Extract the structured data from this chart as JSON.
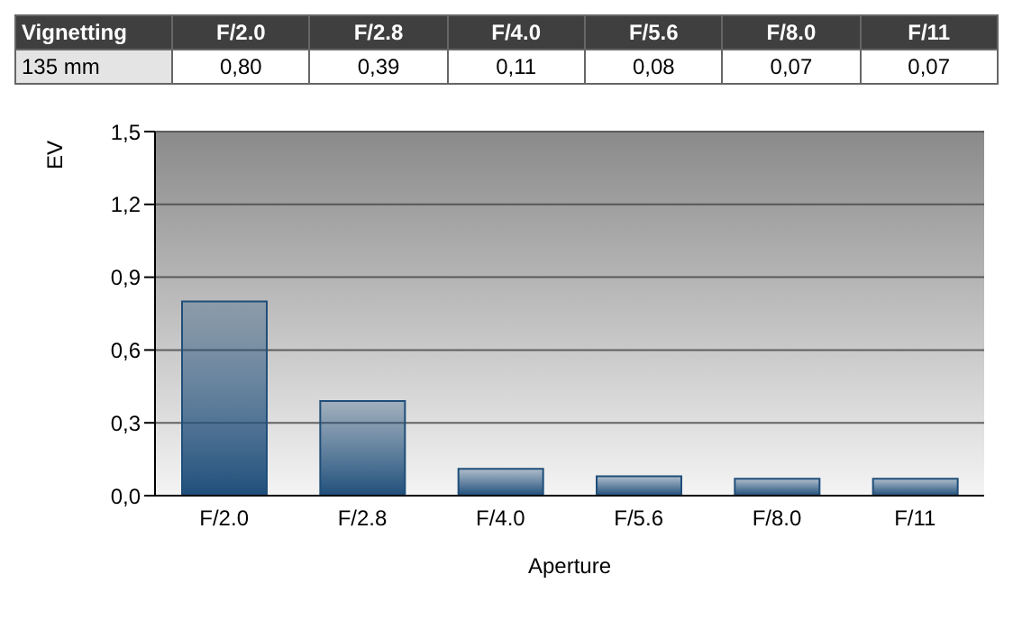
{
  "chart_data": {
    "type": "bar",
    "title": "Vignetting",
    "annotations": [
      "135 mm"
    ],
    "categories": [
      "F/2.0",
      "F/2.8",
      "F/4.0",
      "F/5.6",
      "F/8.0",
      "F/11"
    ],
    "values": [
      0.8,
      0.39,
      0.11,
      0.08,
      0.07,
      0.07
    ],
    "value_labels": [
      "0,80",
      "0,39",
      "0,11",
      "0,08",
      "0,07",
      "0,07"
    ],
    "color": "#1f4e7a",
    "xlabel": "Aperture",
    "ylabel": "EV",
    "ylim": [
      0,
      1.5
    ],
    "yticks": [
      {
        "value": 0,
        "label": "0,0"
      },
      {
        "value": 0.3,
        "label": "0,3"
      },
      {
        "value": 0.6,
        "label": "0,6"
      },
      {
        "value": 0.9,
        "label": "0,9"
      },
      {
        "value": 1.2,
        "label": "1,2"
      },
      {
        "value": 1.5,
        "label": "1,5"
      }
    ],
    "grid": "y"
  }
}
